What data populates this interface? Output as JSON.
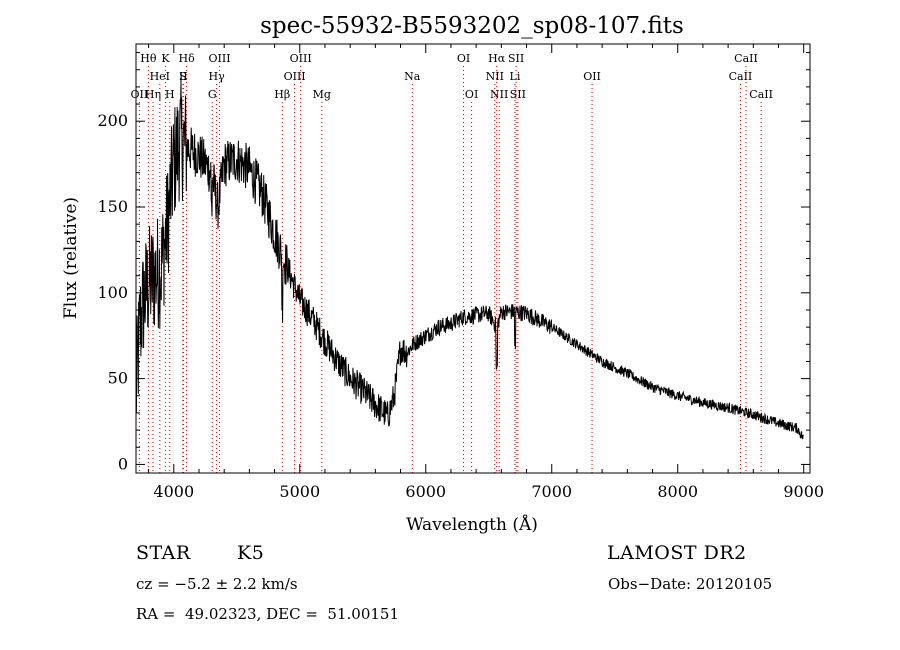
{
  "chart_data": {
    "type": "line",
    "title": "spec-55932-B5593202_sp08-107.fits",
    "xlabel": "Wavelength (Å)",
    "ylabel": "Flux (relative)",
    "xlim": [
      3700,
      9050
    ],
    "ylim": [
      -5,
      245
    ],
    "xticks": [
      4000,
      5000,
      6000,
      7000,
      8000,
      9000
    ],
    "yticks": [
      0,
      50,
      100,
      150,
      200
    ],
    "line_color": "#000000",
    "marker_color": "#cc0000",
    "spectrum_anchors": {
      "x": [
        3700,
        3730,
        3760,
        3800,
        3850,
        3900,
        3950,
        4000,
        4050,
        4100,
        4200,
        4300,
        4350,
        4400,
        4500,
        4600,
        4700,
        4800,
        4860,
        4900,
        5000,
        5100,
        5200,
        5300,
        5400,
        5500,
        5600,
        5700,
        5750,
        5800,
        5850,
        5900,
        6000,
        6100,
        6200,
        6300,
        6400,
        6500,
        6563,
        6600,
        6700,
        6800,
        6900,
        7000,
        7200,
        7400,
        7600,
        7800,
        8000,
        8200,
        8400,
        8600,
        8800,
        8950,
        9000
      ],
      "y": [
        40,
        80,
        95,
        105,
        110,
        115,
        140,
        175,
        190,
        185,
        180,
        170,
        150,
        175,
        178,
        172,
        158,
        135,
        122,
        115,
        96,
        85,
        72,
        60,
        50,
        43,
        35,
        28,
        40,
        68,
        65,
        70,
        75,
        80,
        82,
        86,
        87,
        88,
        80,
        89,
        89,
        88,
        84,
        80,
        70,
        60,
        53,
        45,
        40,
        36,
        33,
        29,
        24,
        21,
        15
      ]
    },
    "lines": [
      {
        "label": "Hθ",
        "x": 3798,
        "row": 1
      },
      {
        "label": "K",
        "x": 3934,
        "row": 1
      },
      {
        "label": "Hδ",
        "x": 4102,
        "row": 1
      },
      {
        "label": "OIII",
        "x": 4363,
        "row": 1
      },
      {
        "label": "OIII",
        "x": 5007,
        "row": 1
      },
      {
        "label": "OI",
        "x": 6300,
        "row": 1
      },
      {
        "label": "Hα",
        "x": 6563,
        "row": 1
      },
      {
        "label": "SII",
        "x": 6717,
        "row": 1
      },
      {
        "label": "CaII",
        "x": 8542,
        "row": 1
      },
      {
        "label": "HeI",
        "x": 3889,
        "row": 2
      },
      {
        "label": "S",
        "x": 4072,
        "row": 2
      },
      {
        "label": "II",
        "x": 4076,
        "row": 2
      },
      {
        "label": "Hγ",
        "x": 4340,
        "row": 2
      },
      {
        "label": "OIII",
        "x": 4959,
        "row": 2
      },
      {
        "label": "Na",
        "x": 5893,
        "row": 2
      },
      {
        "label": "NII",
        "x": 6548,
        "row": 2
      },
      {
        "label": "Li",
        "x": 6708,
        "row": 2
      },
      {
        "label": "OII",
        "x": 7320,
        "row": 2
      },
      {
        "label": "CaII",
        "x": 8498,
        "row": 2
      },
      {
        "label": "OII",
        "x": 3727,
        "row": 3
      },
      {
        "label": "Hη",
        "x": 3835,
        "row": 3
      },
      {
        "label": "H",
        "x": 3968,
        "row": 3
      },
      {
        "label": "G",
        "x": 4305,
        "row": 3
      },
      {
        "label": "Hβ",
        "x": 4861,
        "row": 3
      },
      {
        "label": "Mg",
        "x": 5175,
        "row": 3
      },
      {
        "label": "OI",
        "x": 6364,
        "row": 3
      },
      {
        "label": "NII",
        "x": 6583,
        "row": 3
      },
      {
        "label": "SII",
        "x": 6731,
        "row": 3
      },
      {
        "label": "CaII",
        "x": 8662,
        "row": 3
      }
    ]
  },
  "info": {
    "object_class": "STAR",
    "subclass": "K5",
    "survey": "LAMOST DR2",
    "cz": "cz = −5.2 ± 2.2 km/s",
    "obs_date": "Obs−Date: 20120105",
    "coords": "RA =  49.02323, DEC =  51.00151"
  }
}
